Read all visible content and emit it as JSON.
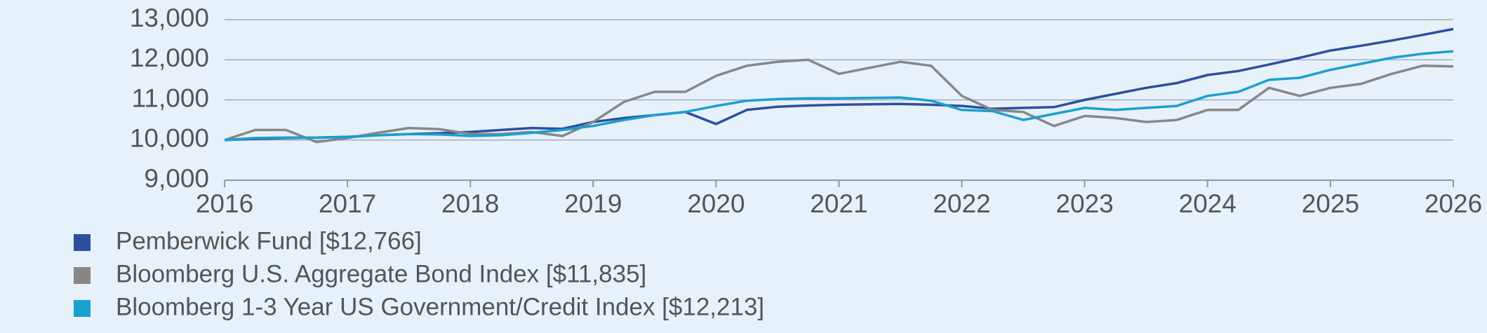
{
  "chart_data": {
    "type": "line",
    "x": [
      2016,
      2016.25,
      2016.5,
      2016.75,
      2017,
      2017.25,
      2017.5,
      2017.75,
      2018,
      2018.25,
      2018.5,
      2018.75,
      2019,
      2019.25,
      2019.5,
      2019.75,
      2020,
      2020.25,
      2020.5,
      2020.75,
      2021,
      2021.25,
      2021.5,
      2021.75,
      2022,
      2022.25,
      2022.5,
      2022.75,
      2023,
      2023.25,
      2023.5,
      2023.75,
      2024,
      2024.25,
      2024.5,
      2024.75,
      2025,
      2025.25,
      2025.5,
      2025.75,
      2026
    ],
    "series": [
      {
        "name": "Pemberwick Fund [$12,766]",
        "color": "#2d4f9e",
        "values": [
          10000,
          10030,
          10050,
          10060,
          10080,
          10120,
          10150,
          10170,
          10200,
          10250,
          10300,
          10280,
          10450,
          10550,
          10620,
          10700,
          10400,
          10750,
          10830,
          10860,
          10880,
          10890,
          10900,
          10880,
          10850,
          10780,
          10800,
          10820,
          11000,
          11150,
          11300,
          11420,
          11620,
          11720,
          11880,
          12050,
          12230,
          12350,
          12480,
          12620,
          12766
        ]
      },
      {
        "name": "Bloomberg U.S. Aggregate Bond Index [$11,835]",
        "color": "#878787",
        "values": [
          10000,
          10250,
          10250,
          9950,
          10050,
          10180,
          10300,
          10270,
          10150,
          10150,
          10200,
          10100,
          10450,
          10950,
          11200,
          11200,
          11600,
          11850,
          11950,
          12000,
          11650,
          11800,
          11950,
          11850,
          11100,
          10750,
          10700,
          10350,
          10600,
          10550,
          10450,
          10500,
          10750,
          10750,
          11300,
          11100,
          11300,
          11400,
          11650,
          11850,
          11835
        ]
      },
      {
        "name": "Bloomberg 1-3 Year US Government/Credit Index [$12,213]",
        "color": "#1b9fcf",
        "values": [
          10000,
          10050,
          10060,
          10060,
          10070,
          10120,
          10150,
          10140,
          10100,
          10120,
          10180,
          10250,
          10350,
          10500,
          10620,
          10700,
          10850,
          10980,
          11020,
          11040,
          11040,
          11050,
          11060,
          10980,
          10750,
          10720,
          10500,
          10650,
          10800,
          10750,
          10800,
          10850,
          11100,
          11200,
          11500,
          11550,
          11750,
          11900,
          12050,
          12150,
          12213
        ]
      }
    ],
    "xlim": [
      2016,
      2026
    ],
    "xticks": [
      2016,
      2017,
      2018,
      2019,
      2020,
      2021,
      2022,
      2023,
      2024,
      2025,
      2026
    ],
    "ylim": [
      9000,
      13000
    ],
    "yticks": [
      {
        "value": 9000,
        "label": "9,000"
      },
      {
        "value": 10000,
        "label": "10,000"
      },
      {
        "value": 11000,
        "label": "11,000"
      },
      {
        "value": 12000,
        "label": "12,000"
      },
      {
        "value": 13000,
        "label": "13,000"
      }
    ],
    "grid": true
  }
}
